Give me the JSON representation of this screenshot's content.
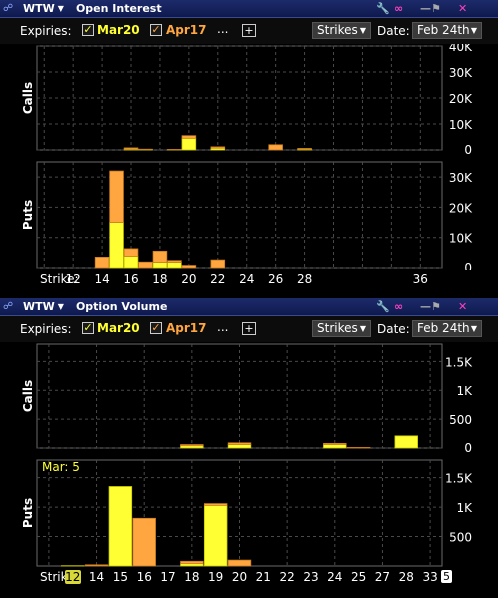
{
  "colors": {
    "mar": "#ffff33",
    "apr": "#ffa640",
    "mar_outline": "#c8c800",
    "apr_outline": "#c87c20",
    "grid": "#4a4a4a"
  },
  "icons": [
    "link-icon",
    "wrench-icon",
    "chain-icon",
    "pin-icon",
    "close-icon"
  ],
  "panels": [
    {
      "title": "Open Interest",
      "symbol": "WTW",
      "toolbar": {
        "expiries_label": "Expiries:",
        "expiry1": "Mar20",
        "expiry2": "Apr17",
        "more": "...",
        "plus": "+",
        "strikes": "Strikes",
        "date_label": "Date:",
        "date_value": "Feb 24th"
      },
      "calls_label": "Calls",
      "puts_label": "Puts",
      "strike_label": "Strike:",
      "chart_data": {
        "type": "bar",
        "stacked": true,
        "x": [
          10,
          11,
          12,
          13,
          14,
          15,
          16,
          17,
          18,
          19,
          20,
          21,
          22,
          23,
          24,
          25,
          26,
          27,
          28,
          29,
          30,
          31,
          32,
          33,
          34,
          35,
          36,
          37
        ],
        "x_ticks": [
          "12",
          "14",
          "16",
          "18",
          "20",
          "22",
          "24",
          "26",
          "28",
          "36"
        ],
        "calls": {
          "ylim": [
            0,
            40000
          ],
          "y_ticks": [
            "0",
            "10K",
            "20K",
            "30K",
            "40K"
          ],
          "series": [
            {
              "name": "Mar20",
              "values": [
                0,
                0,
                0,
                0,
                0,
                0,
                300,
                200,
                0,
                100,
                4500,
                0,
                700,
                0,
                0,
                0,
                0,
                0,
                300,
                0,
                0,
                0,
                0,
                0,
                0,
                0,
                0,
                0
              ]
            },
            {
              "name": "Apr17",
              "values": [
                0,
                0,
                0,
                0,
                0,
                0,
                500,
                100,
                0,
                100,
                1000,
                0,
                500,
                0,
                0,
                0,
                2000,
                0,
                300,
                0,
                0,
                0,
                0,
                0,
                0,
                0,
                0,
                0
              ]
            }
          ]
        },
        "puts": {
          "ylim": [
            0,
            35000
          ],
          "y_ticks": [
            "0",
            "10K",
            "20K",
            "30K"
          ],
          "series": [
            {
              "name": "Mar20",
              "values": [
                0,
                0,
                0,
                0,
                0,
                15000,
                3800,
                0,
                1800,
                1800,
                0,
                0,
                0,
                0,
                0,
                0,
                0,
                0,
                0,
                0,
                0,
                0,
                0,
                0,
                0,
                0,
                0,
                0
              ]
            },
            {
              "name": "Apr17",
              "values": [
                0,
                0,
                0,
                0,
                3500,
                17000,
                2500,
                1900,
                3700,
                600,
                800,
                0,
                2600,
                0,
                0,
                0,
                0,
                0,
                0,
                0,
                0,
                0,
                0,
                0,
                0,
                0,
                0,
                0
              ]
            }
          ]
        }
      }
    },
    {
      "title": "Option Volume",
      "symbol": "WTW",
      "toolbar": {
        "expiries_label": "Expiries:",
        "expiry1": "Mar20",
        "expiry2": "Apr17",
        "more": "...",
        "plus": "+",
        "strikes": "Strikes",
        "date_label": "Date:",
        "date_value": "Feb 24th"
      },
      "calls_label": "Calls",
      "puts_label": "Puts",
      "strike_label": "Strike:",
      "tooltip": "Mar: 5",
      "highlighted_strike": "12",
      "cursor_value": "5",
      "chart_data": {
        "type": "bar",
        "stacked": true,
        "x": [
          "11",
          "12",
          "14",
          "15",
          "16",
          "17",
          "18",
          "19",
          "20",
          "21",
          "22",
          "23",
          "24",
          "25",
          "27",
          "28",
          "33"
        ],
        "x_ticks": [
          "12",
          "14",
          "15",
          "16",
          "17",
          "18",
          "19",
          "20",
          "21",
          "22",
          "23",
          "24",
          "25",
          "27",
          "28",
          "33"
        ],
        "calls": {
          "ylim": [
            0,
            1800
          ],
          "y_ticks": [
            "0",
            "500",
            "1K",
            "1.5K"
          ],
          "series": [
            {
              "name": "Mar20",
              "values": [
                0,
                0,
                0,
                0,
                0,
                0,
                40,
                0,
                60,
                0,
                0,
                0,
                60,
                0,
                0,
                210,
                0
              ]
            },
            {
              "name": "Apr17",
              "values": [
                0,
                0,
                0,
                0,
                0,
                0,
                20,
                0,
                30,
                0,
                0,
                0,
                20,
                10,
                0,
                0,
                0
              ]
            }
          ]
        },
        "puts": {
          "ylim": [
            0,
            1800
          ],
          "y_ticks": [
            "500",
            "1K",
            "1.5K"
          ],
          "series": [
            {
              "name": "Mar20",
              "values": [
                0,
                5,
                0,
                1350,
                0,
                0,
                40,
                1030,
                0,
                0,
                0,
                0,
                0,
                0,
                0,
                0,
                0
              ]
            },
            {
              "name": "Apr17",
              "values": [
                0,
                0,
                20,
                0,
                810,
                0,
                40,
                30,
                100,
                0,
                0,
                0,
                0,
                0,
                0,
                0,
                0
              ]
            }
          ]
        }
      }
    }
  ]
}
